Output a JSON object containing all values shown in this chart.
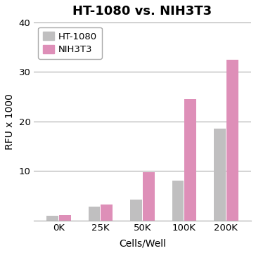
{
  "title": "HT-1080 vs. NIH3T3",
  "xlabel": "Cells/Well",
  "ylabel": "RFU x 1000",
  "categories": [
    "0K",
    "25K",
    "50K",
    "100K",
    "200K"
  ],
  "ht1080_values": [
    1.0,
    2.8,
    4.2,
    8.0,
    18.5
  ],
  "nih3t3_values": [
    1.1,
    3.2,
    9.8,
    24.5,
    32.5
  ],
  "ht1080_color": "#c0bfc0",
  "nih3t3_color": "#de8fb8",
  "ylim": [
    0,
    40
  ],
  "yticks": [
    0,
    10,
    20,
    30,
    40
  ],
  "bar_width": 0.28,
  "bar_gap": 0.02,
  "legend_labels": [
    "HT-1080",
    "NIH3T3"
  ],
  "background_color": "#ffffff",
  "title_fontsize": 13,
  "axis_fontsize": 10,
  "tick_fontsize": 9.5
}
